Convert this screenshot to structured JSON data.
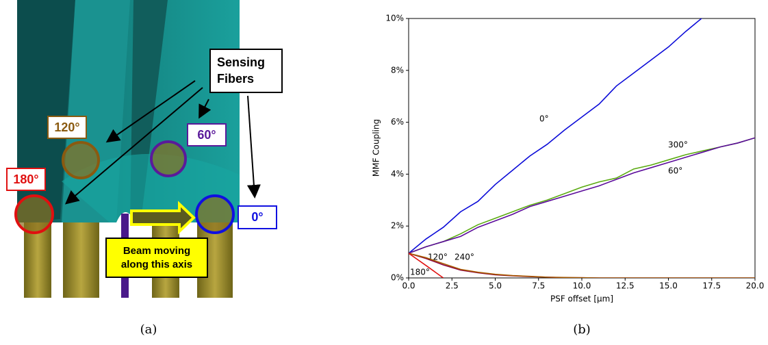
{
  "panel_a": {
    "caption": "(a)",
    "callout": [
      "Sensing",
      "Fibers"
    ],
    "fiber_labels": [
      "120°",
      "60°",
      "180°",
      "0°"
    ],
    "beam_label": [
      "Beam moving",
      "along this axis"
    ]
  },
  "panel_b": {
    "caption": "(b)"
  },
  "chart_data": {
    "type": "line",
    "x_label": "PSF offset [μm]",
    "y_label": "MMF Coupling",
    "x": [
      0,
      1,
      2,
      3,
      4,
      5,
      6,
      7,
      8,
      9,
      10,
      11,
      12,
      13,
      14,
      15,
      16,
      17,
      18,
      19,
      20
    ],
    "series": [
      {
        "name": "0°",
        "color": "#0a0ad8",
        "values": [
          0.95,
          1.5,
          1.95,
          2.55,
          2.95,
          3.6,
          4.15,
          4.7,
          5.15,
          5.7,
          6.2,
          6.7,
          7.4,
          7.9,
          8.4,
          8.9,
          9.5,
          10.05,
          null,
          null,
          null
        ]
      },
      {
        "name": "300°",
        "color": "#5aaa10",
        "values": [
          0.95,
          1.2,
          1.4,
          1.7,
          2.05,
          2.3,
          2.55,
          2.8,
          3.0,
          3.25,
          3.5,
          3.7,
          3.85,
          4.2,
          4.35,
          4.55,
          4.75,
          4.9,
          5.05,
          5.2,
          5.4
        ]
      },
      {
        "name": "60°",
        "color": "#5a0a9a",
        "values": [
          0.95,
          1.2,
          1.4,
          1.6,
          1.95,
          2.2,
          2.45,
          2.75,
          2.95,
          3.15,
          3.35,
          3.55,
          3.8,
          4.05,
          4.25,
          4.45,
          4.65,
          4.85,
          5.05,
          5.2,
          5.4
        ]
      },
      {
        "name": "120°",
        "color": "#8a0040",
        "values": [
          0.95,
          0.75,
          0.5,
          0.3,
          0.2,
          0.12,
          0.08,
          0.05,
          0.03,
          0.01,
          0.01,
          0,
          0,
          0,
          0,
          0,
          0,
          0,
          0,
          0,
          0
        ]
      },
      {
        "name": "240°",
        "color": "#a85a00",
        "values": [
          0.95,
          0.78,
          0.55,
          0.33,
          0.22,
          0.14,
          0.09,
          0.06,
          0.03,
          0.02,
          0.01,
          0,
          0,
          0,
          0,
          0,
          0,
          0,
          0,
          0,
          0
        ]
      },
      {
        "name": "180°",
        "color": "#e01010",
        "values": [
          0.95,
          0.48,
          0.0,
          null,
          null,
          null,
          null,
          null,
          null,
          null,
          null,
          null,
          null,
          null,
          null,
          null,
          null,
          null,
          null,
          null,
          null
        ]
      }
    ],
    "xlim": [
      0,
      20
    ],
    "xticks": [
      {
        "value": 0,
        "label": "0.0"
      },
      2.5,
      {
        "value": 5,
        "label": "5.0"
      },
      7.5,
      {
        "value": 10,
        "label": "10.0"
      },
      12.5,
      {
        "value": 15,
        "label": "15.0"
      },
      17.5,
      {
        "value": 20,
        "label": "20.0"
      }
    ],
    "ylim": [
      0,
      10
    ],
    "yticks": [
      {
        "value": 0,
        "label": "0%"
      },
      {
        "value": 2,
        "label": "2%"
      },
      {
        "value": 4,
        "label": "4%"
      },
      {
        "value": 6,
        "label": "6%"
      },
      {
        "value": 8,
        "label": "8%"
      },
      {
        "value": 10,
        "label": "10%"
      }
    ],
    "grid": false
  }
}
